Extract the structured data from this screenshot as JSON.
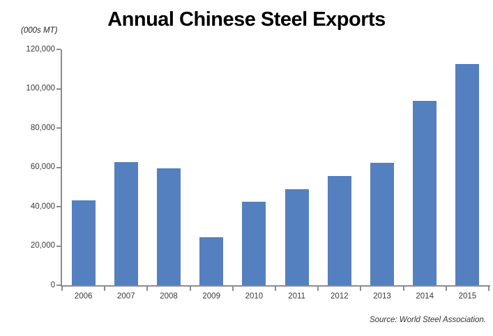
{
  "page": {
    "title": "Annual Chinese Steel Exports",
    "unit_label": "(000s MT)",
    "source": "Source: World Steel Association."
  },
  "chart_data": {
    "type": "bar",
    "title": "Annual Chinese Steel Exports",
    "ylabel": "(000s MT)",
    "xlabel": "",
    "source": "Source: World Steel Association.",
    "categories": [
      "2006",
      "2007",
      "2008",
      "2009",
      "2010",
      "2011",
      "2012",
      "2013",
      "2014",
      "2015"
    ],
    "values": [
      43200,
      62600,
      59300,
      24600,
      42600,
      48900,
      55700,
      62300,
      93800,
      112400
    ],
    "ylim": [
      0,
      120000
    ],
    "y_tick_interval": 20000,
    "y_tick_labels": [
      "0",
      "20,000",
      "40,000",
      "60,000",
      "80,000",
      "100,000",
      "120,000"
    ],
    "grid": false,
    "legend": "none",
    "bar_color": "#5580BF",
    "axis_color": "#8C8C8C",
    "text_color": "#3A3A3A"
  }
}
